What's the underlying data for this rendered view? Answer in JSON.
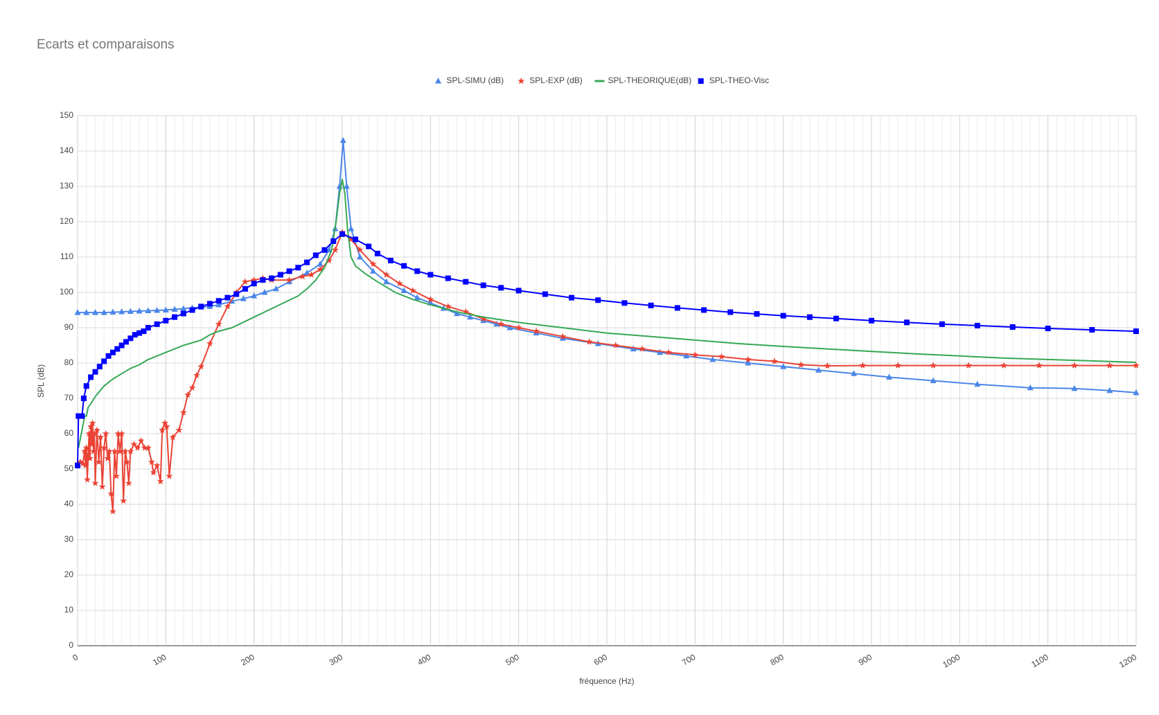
{
  "chart_data": {
    "type": "line",
    "title": "Ecarts et comparaisons",
    "xlabel": "fréquence (Hz)",
    "ylabel": "SPL (dB)",
    "xlim": [
      0,
      1200
    ],
    "xticks": [
      0,
      100,
      200,
      300,
      400,
      500,
      600,
      700,
      800,
      900,
      1000,
      1100,
      1200
    ],
    "ylim": [
      0,
      150
    ],
    "yticks": [
      0,
      10,
      20,
      30,
      40,
      50,
      60,
      70,
      80,
      90,
      100,
      110,
      120,
      130,
      140,
      150
    ],
    "grid": true,
    "legend": "top",
    "series": [
      {
        "name": "SPL-SIMU (dB)",
        "color": "#4a86e8",
        "marker": "triangle",
        "x": [
          0,
          10,
          20,
          30,
          40,
          50,
          60,
          70,
          80,
          90,
          100,
          110,
          120,
          130,
          140,
          150,
          160,
          175,
          188,
          200,
          212,
          225,
          240,
          260,
          275,
          285,
          292,
          297,
          301,
          305,
          310,
          320,
          335,
          350,
          370,
          385,
          400,
          415,
          430,
          445,
          460,
          475,
          490,
          520,
          550,
          590,
          630,
          660,
          690,
          720,
          760,
          800,
          840,
          880,
          920,
          970,
          1020,
          1080,
          1130,
          1170,
          1200
        ],
        "values": [
          94.3,
          94.3,
          94.3,
          94.3,
          94.4,
          94.5,
          94.6,
          94.7,
          94.8,
          94.9,
          95,
          95.2,
          95.4,
          95.6,
          95.8,
          96,
          96.5,
          97.5,
          98.2,
          99,
          100,
          101,
          103,
          105.5,
          108,
          112,
          118,
          130,
          143,
          130,
          118,
          110,
          106,
          103,
          100.5,
          98.5,
          97,
          95.5,
          94,
          93,
          92,
          91,
          90,
          88.5,
          87,
          85.5,
          84,
          83,
          82,
          81,
          80,
          79,
          78,
          77,
          76,
          75,
          74,
          73,
          72.8,
          72.2,
          71.6
        ]
      },
      {
        "name": "SPL-EXP (dB)",
        "color": "#ea4335",
        "marker": "star",
        "x": [
          0,
          3,
          6,
          8,
          9,
          10,
          11,
          12,
          13,
          14,
          15,
          16,
          17,
          18,
          19,
          20,
          22,
          24,
          26,
          28,
          30,
          32,
          34,
          36,
          38,
          40,
          42,
          44,
          46,
          48,
          50,
          52,
          54,
          56,
          58,
          60,
          64,
          68,
          72,
          76,
          80,
          84,
          86,
          90,
          94,
          96,
          99,
          101,
          104,
          108,
          115,
          120,
          125,
          130,
          135,
          140,
          150,
          160,
          170,
          180,
          190,
          200,
          210,
          220,
          240,
          255,
          265,
          275,
          285,
          292,
          300,
          310,
          320,
          335,
          350,
          365,
          380,
          400,
          420,
          440,
          460,
          480,
          500,
          520,
          550,
          580,
          610,
          640,
          670,
          700,
          730,
          760,
          790,
          820,
          850,
          890,
          930,
          970,
          1010,
          1050,
          1090,
          1130,
          1170,
          1200
        ],
        "values": [
          51.5,
          52,
          51.5,
          55,
          51,
          56,
          47,
          54,
          60,
          53,
          62,
          57,
          63,
          55,
          60,
          46,
          61,
          52,
          59,
          45,
          56,
          60,
          53,
          55,
          43,
          38,
          55,
          48,
          60,
          55,
          60,
          41,
          55,
          52,
          46,
          55,
          57,
          56,
          58,
          56,
          56,
          52,
          49,
          51,
          46.5,
          61,
          63,
          62,
          48,
          59,
          61,
          66,
          71,
          73,
          76.5,
          79,
          85.5,
          91,
          96,
          100,
          103,
          103.5,
          104,
          103.5,
          103.5,
          104.5,
          105,
          106.5,
          109,
          112,
          117,
          115,
          112,
          108,
          105,
          102.5,
          100.5,
          98,
          96,
          94.5,
          92.5,
          91,
          90,
          89,
          87.5,
          86,
          85,
          84,
          83,
          82.3,
          81.8,
          81,
          80.5,
          79.5,
          79.2,
          79.3,
          79.3,
          79.3,
          79.3,
          79.3,
          79.3,
          79.3,
          79.3,
          79.3
        ]
      },
      {
        "name": "SPL-THEORIQUE(dB)",
        "color": "#34a853",
        "marker": "none",
        "x": [
          1,
          5,
          8,
          10,
          12,
          15,
          20,
          25,
          30,
          40,
          50,
          60,
          70,
          80,
          100,
          120,
          140,
          150,
          160,
          175,
          200,
          225,
          250,
          260,
          270,
          280,
          288,
          293,
          297,
          300,
          303,
          306,
          310,
          315,
          325,
          340,
          360,
          380,
          400,
          430,
          460,
          500,
          550,
          600,
          650,
          700,
          750,
          800,
          850,
          900,
          950,
          1000,
          1050,
          1100,
          1150,
          1200
        ],
        "values": [
          56,
          61,
          65,
          65,
          67.5,
          68.5,
          70.5,
          72,
          73.5,
          75.5,
          77,
          78.5,
          79.5,
          81,
          83,
          85,
          86.5,
          88,
          89,
          90,
          93,
          96,
          99,
          101,
          103.5,
          107,
          112,
          120,
          128,
          132,
          128,
          118,
          110,
          107.5,
          105.5,
          103,
          100,
          98,
          96.5,
          94.5,
          93,
          91.5,
          90,
          88.5,
          87.5,
          86.5,
          85.5,
          84.7,
          84,
          83.3,
          82.6,
          82,
          81.4,
          81,
          80.6,
          80.2
        ]
      },
      {
        "name": "SPL-THEO-Visc",
        "color": "#0000ff",
        "marker": "square",
        "x": [
          0,
          1,
          5,
          7,
          10,
          15,
          20,
          25,
          30,
          35,
          40,
          45,
          50,
          55,
          60,
          65,
          70,
          75,
          80,
          90,
          100,
          110,
          120,
          130,
          140,
          150,
          160,
          170,
          180,
          190,
          200,
          210,
          220,
          230,
          240,
          250,
          260,
          270,
          280,
          290,
          300,
          315,
          330,
          340,
          355,
          370,
          385,
          400,
          420,
          440,
          460,
          480,
          500,
          530,
          560,
          590,
          620,
          650,
          680,
          710,
          740,
          770,
          800,
          830,
          860,
          900,
          940,
          980,
          1020,
          1060,
          1100,
          1150,
          1200
        ],
        "values": [
          51,
          65,
          65,
          70,
          73.5,
          76,
          77.5,
          79,
          80.5,
          82,
          83,
          84,
          85,
          86,
          87,
          88,
          88.5,
          89,
          90,
          91,
          92,
          93,
          94,
          95,
          96,
          96.8,
          97.6,
          98.5,
          99.5,
          101,
          102.5,
          103.5,
          104,
          105,
          106,
          107,
          108.5,
          110.5,
          112,
          114.5,
          116.5,
          115,
          113,
          111,
          109,
          107.5,
          106,
          105,
          104,
          103,
          102,
          101.3,
          100.5,
          99.5,
          98.5,
          97.8,
          97,
          96.3,
          95.6,
          95,
          94.4,
          93.9,
          93.4,
          93,
          92.6,
          92,
          91.5,
          91,
          90.6,
          90.2,
          89.8,
          89.4,
          89
        ]
      }
    ]
  }
}
